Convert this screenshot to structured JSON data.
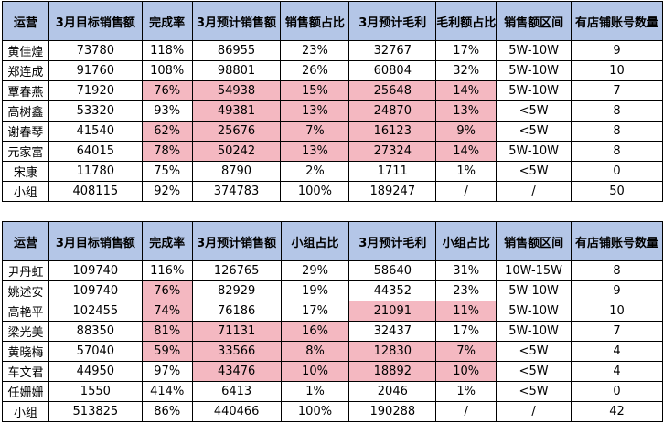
{
  "table1": {
    "headers": [
      "运营",
      "3月目标销售额",
      "完成率",
      "3月预计销售额",
      "销售额占比",
      "3月预计毛利",
      "毛利额占比",
      "销售额区间",
      "有店铺账号数量"
    ],
    "rows": [
      [
        "黄佳煌",
        "73780",
        "118%",
        "86955",
        "23%",
        "32767",
        "17%",
        "5W-10W",
        "9"
      ],
      [
        "郑连成",
        "91760",
        "108%",
        "98801",
        "26%",
        "60804",
        "32%",
        "5W-10W",
        "10"
      ],
      [
        "覃春燕",
        "71920",
        "76%",
        "54938",
        "15%",
        "25648",
        "14%",
        "5W-10W",
        "7"
      ],
      [
        "高树鑫",
        "53320",
        "93%",
        "49381",
        "13%",
        "24870",
        "13%",
        "<5W",
        "8"
      ],
      [
        "谢春琴",
        "41540",
        "62%",
        "25676",
        "7%",
        "16123",
        "9%",
        "<5W",
        "8"
      ],
      [
        "元家富",
        "64015",
        "78%",
        "50242",
        "13%",
        "27324",
        "14%",
        "5W-10W",
        "8"
      ],
      [
        "宋康",
        "11780",
        "75%",
        "8790",
        "2%",
        "1711",
        "1%",
        "<5W",
        "0"
      ],
      [
        "小组",
        "408115",
        "92%",
        "374783",
        "100%",
        "189247",
        "/",
        "/",
        "50"
      ]
    ],
    "highlight_color": "#f4b8c1",
    "header_color": "#b4c6e7"
  },
  "table2": {
    "headers": [
      "运营",
      "3月目标销售额",
      "完成率",
      "3月预计销售额",
      "小组占比",
      "3月预计毛利",
      "小组占比",
      "销售额区间",
      "有店铺账号数量"
    ],
    "rows": [
      [
        "尹丹虹",
        "109740",
        "116%",
        "126765",
        "29%",
        "58640",
        "31%",
        "10W-15W",
        "8"
      ],
      [
        "姚述安",
        "109740",
        "76%",
        "82929",
        "19%",
        "44352",
        "23%",
        "5W-10W",
        "9"
      ],
      [
        "高艳平",
        "102455",
        "74%",
        "76186",
        "17%",
        "21091",
        "11%",
        "5W-10W",
        "10"
      ],
      [
        "梁光美",
        "88350",
        "81%",
        "71131",
        "16%",
        "32437",
        "17%",
        "5W-10W",
        "7"
      ],
      [
        "黄晓梅",
        "57040",
        "59%",
        "33566",
        "8%",
        "12830",
        "7%",
        "<5W",
        "4"
      ],
      [
        "车文君",
        "44950",
        "97%",
        "43476",
        "10%",
        "18892",
        "10%",
        "<5W",
        "4"
      ],
      [
        "任姗姗",
        "1550",
        "414%",
        "6413",
        "1%",
        "2046",
        "1%",
        "<5W",
        "0"
      ],
      [
        "小组",
        "513825",
        "86%",
        "440466",
        "100%",
        "190288",
        "/",
        "/",
        "42"
      ]
    ]
  }
}
